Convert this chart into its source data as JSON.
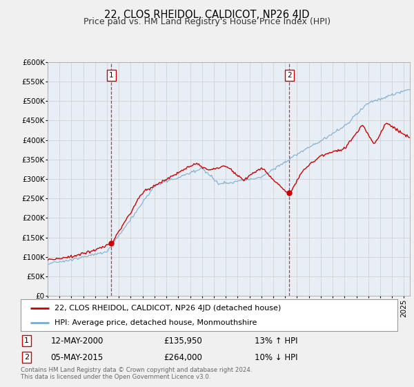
{
  "title": "22, CLOS RHEIDOL, CALDICOT, NP26 4JD",
  "subtitle": "Price paid vs. HM Land Registry's House Price Index (HPI)",
  "ylim": [
    0,
    600000
  ],
  "yticks": [
    0,
    50000,
    100000,
    150000,
    200000,
    250000,
    300000,
    350000,
    400000,
    450000,
    500000,
    550000,
    600000
  ],
  "xlim_start": 1995.0,
  "xlim_end": 2025.5,
  "background_color": "#f0f0f0",
  "plot_bg_color": "#e8eef5",
  "red_line_color": "#cc0000",
  "blue_line_color": "#7aabcf",
  "marker_color": "#cc0000",
  "vline_color": "#cc0000",
  "sale1_year": 2000.36,
  "sale1_value": 135950,
  "sale1_label": "1",
  "sale2_year": 2015.34,
  "sale2_value": 264000,
  "sale2_label": "2",
  "legend_red": "22, CLOS RHEIDOL, CALDICOT, NP26 4JD (detached house)",
  "legend_blue": "HPI: Average price, detached house, Monmouthshire",
  "annotation1_date": "12-MAY-2000",
  "annotation1_price": "£135,950",
  "annotation1_hpi": "13% ↑ HPI",
  "annotation2_date": "05-MAY-2015",
  "annotation2_price": "£264,000",
  "annotation2_hpi": "10% ↓ HPI",
  "footnote1": "Contains HM Land Registry data © Crown copyright and database right 2024.",
  "footnote2": "This data is licensed under the Open Government Licence v3.0.",
  "title_fontsize": 10.5,
  "subtitle_fontsize": 9,
  "tick_fontsize": 7.5,
  "legend_fontsize": 8,
  "annotation_fontsize": 8.5
}
